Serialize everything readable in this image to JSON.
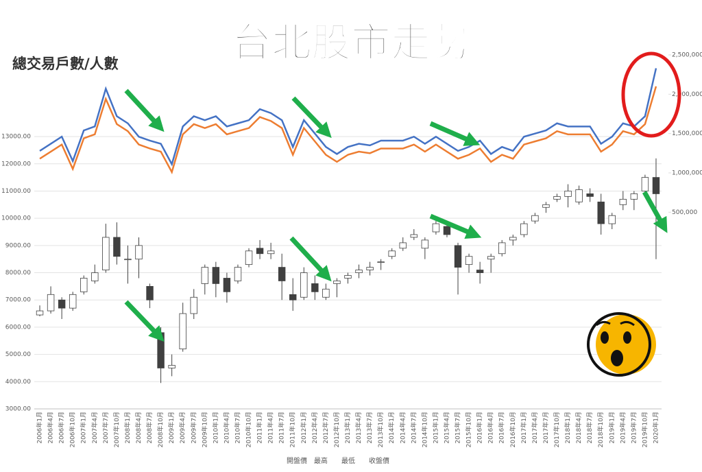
{
  "chart_data": {
    "type": "candlestick",
    "title": "台北股市走勢",
    "subtitle": "總交易戶數/人數",
    "categories": [
      "2006年1月",
      "2006年4月",
      "2006年7月",
      "2006年10月",
      "2007年1月",
      "2007年4月",
      "2007年7月",
      "2007年10月",
      "2008年1月",
      "2008年4月",
      "2008年7月",
      "2008年10月",
      "2009年1月",
      "2009年4月",
      "2009年7月",
      "2009年10月",
      "2010年1月",
      "2010年4月",
      "2010年7月",
      "2010年10月",
      "2011年1月",
      "2011年4月",
      "2011年7月",
      "2011年10月",
      "2012年1月",
      "2012年4月",
      "2012年7月",
      "2012年10月",
      "2013年1月",
      "2013年4月",
      "2013年7月",
      "2013年10月",
      "2014年1月",
      "2014年4月",
      "2014年7月",
      "2014年10月",
      "2015年1月",
      "2015年4月",
      "2015年7月",
      "2015年10月",
      "2016年1月",
      "2016年4月",
      "2016年7月",
      "2016年10月",
      "2017年1月",
      "2017年4月",
      "2017年7月",
      "2017年10月",
      "2018年1月",
      "2018年4月",
      "2018年7月",
      "2018年10月",
      "2019年1月",
      "2019年4月",
      "2019年7月",
      "2019年10月",
      "2020年1月"
    ],
    "series": [
      {
        "name": "開盤價",
        "values": [
          6450,
          6600,
          7000,
          6700,
          7300,
          7700,
          8100,
          9300,
          8500,
          8500,
          7500,
          5800,
          4500,
          5200,
          6500,
          7600,
          8200,
          7800,
          7700,
          8300,
          8900,
          8700,
          8200,
          7200,
          7100,
          7600,
          7100,
          7600,
          7800,
          8000,
          8100,
          8400,
          8600,
          8900,
          9300,
          8900,
          9500,
          9700,
          9000,
          8300,
          8100,
          8500,
          8700,
          9200,
          9400,
          9900,
          10400,
          10700,
          10800,
          10600,
          10900,
          10600,
          9800,
          10500,
          10700,
          11000,
          11500
        ]
      },
      {
        "name": "最高",
        "values": [
          6800,
          7500,
          7100,
          7300,
          7900,
          8300,
          9800,
          9850,
          9000,
          9300,
          7600,
          6000,
          5000,
          6900,
          7400,
          8300,
          8400,
          8000,
          8300,
          8900,
          9200,
          9100,
          8700,
          7800,
          8200,
          7900,
          7600,
          7800,
          8000,
          8300,
          8400,
          8500,
          8900,
          9300,
          9600,
          9300,
          9900,
          9800,
          9100,
          8700,
          8400,
          8700,
          9200,
          9400,
          9900,
          10200,
          10600,
          10900,
          11250,
          11200,
          11100,
          10900,
          10200,
          11000,
          11000,
          11600,
          12200
        ]
      },
      {
        "name": "最低",
        "values": [
          6400,
          6500,
          6300,
          6600,
          7200,
          7600,
          8000,
          8300,
          7600,
          7800,
          6700,
          3950,
          4200,
          5100,
          6300,
          7200,
          7100,
          6900,
          7600,
          8200,
          8500,
          8500,
          7000,
          6600,
          7000,
          7000,
          7000,
          7100,
          7600,
          7800,
          7900,
          8100,
          8500,
          8800,
          9200,
          8500,
          9400,
          9300,
          7200,
          8000,
          7600,
          8000,
          8600,
          9000,
          9300,
          9800,
          10200,
          10600,
          10400,
          10500,
          10600,
          9400,
          9600,
          10300,
          10300,
          10900,
          8500
        ]
      },
      {
        "name": "收盤價",
        "values": [
          6600,
          7200,
          6700,
          7200,
          7800,
          8000,
          9300,
          8600,
          8500,
          9000,
          7000,
          4500,
          4600,
          6500,
          7100,
          8200,
          7600,
          7300,
          8200,
          8800,
          8700,
          8800,
          7700,
          7000,
          8000,
          7300,
          7400,
          7700,
          7900,
          8100,
          8200,
          8400,
          8800,
          9100,
          9400,
          9200,
          9800,
          9400,
          8200,
          8600,
          8000,
          8600,
          9100,
          9300,
          9800,
          10100,
          10500,
          10800,
          11000,
          11050,
          10800,
          9800,
          10100,
          10700,
          10900,
          11500,
          10900
        ]
      }
    ],
    "lines": [
      {
        "color": "#4472c4",
        "axis": "y2",
        "values": [
          1280000,
          1370000,
          1460000,
          1150000,
          1540000,
          1590000,
          2070000,
          1720000,
          1630000,
          1460000,
          1410000,
          1370000,
          1110000,
          1590000,
          1720000,
          1670000,
          1720000,
          1590000,
          1630000,
          1670000,
          1810000,
          1760000,
          1670000,
          1330000,
          1670000,
          1500000,
          1330000,
          1240000,
          1330000,
          1370000,
          1350000,
          1410000,
          1410000,
          1410000,
          1460000,
          1370000,
          1460000,
          1370000,
          1280000,
          1330000,
          1410000,
          1240000,
          1330000,
          1280000,
          1460000,
          1500000,
          1540000,
          1630000,
          1590000,
          1590000,
          1590000,
          1370000,
          1460000,
          1630000,
          1590000,
          1720000,
          2330000
        ]
      },
      {
        "color": "#ed7d31",
        "axis": "y2",
        "values": [
          1180000,
          1270000,
          1360000,
          1050000,
          1440000,
          1490000,
          1940000,
          1620000,
          1530000,
          1360000,
          1310000,
          1270000,
          1010000,
          1490000,
          1620000,
          1570000,
          1620000,
          1490000,
          1530000,
          1570000,
          1710000,
          1660000,
          1570000,
          1230000,
          1570000,
          1400000,
          1230000,
          1140000,
          1230000,
          1270000,
          1250000,
          1310000,
          1310000,
          1310000,
          1360000,
          1270000,
          1360000,
          1270000,
          1180000,
          1230000,
          1310000,
          1140000,
          1230000,
          1180000,
          1360000,
          1400000,
          1440000,
          1530000,
          1490000,
          1490000,
          1490000,
          1270000,
          1360000,
          1530000,
          1490000,
          1620000,
          2100000
        ]
      }
    ],
    "ylim": [
      3000,
      16000
    ],
    "yticks": [
      {
        "value": 3000,
        "label": "3000.00"
      },
      {
        "value": 4000,
        "label": "4000.00"
      },
      {
        "value": 5000,
        "label": "5000.00"
      },
      {
        "value": 6000,
        "label": "6000.00"
      },
      {
        "value": 7000,
        "label": "7000.00"
      },
      {
        "value": 8000,
        "label": "8000.00"
      },
      {
        "value": 9000,
        "label": "9000.00"
      },
      {
        "value": 10000,
        "label": "10000.00"
      },
      {
        "value": 11000,
        "label": "11000.00"
      },
      {
        "value": 12000,
        "label": "12000.00"
      },
      {
        "value": 13000,
        "label": "13000.00"
      }
    ],
    "y2lim": [
      -2000000,
      2500000
    ],
    "y2ticks": [
      {
        "value": 500000,
        "label": "500,000"
      },
      {
        "value": 1000000,
        "label": "1,000,000"
      },
      {
        "value": 1500000,
        "label": "1,500,000"
      },
      {
        "value": 2000000,
        "label": "2,000,000"
      },
      {
        "value": 2500000,
        "label": "2,500,000"
      }
    ],
    "grid": true,
    "up_color": "#ffffff",
    "down_color": "#404040"
  }
}
